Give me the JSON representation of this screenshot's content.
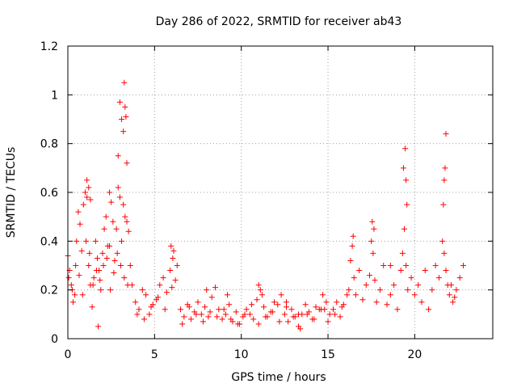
{
  "chart_data": {
    "type": "scatter",
    "title": "Day 286 of 2022, SRMTID for receiver ab43",
    "xlabel": "GPS time / hours",
    "ylabel": "SRMTID / TECUs",
    "xlim": [
      0,
      24.5
    ],
    "ylim": [
      0,
      1.2
    ],
    "x_ticks": [
      0,
      5,
      10,
      15,
      20
    ],
    "x_tick_labels": [
      "0",
      "5",
      "10",
      "15",
      "20"
    ],
    "y_ticks": [
      0,
      0.2,
      0.4,
      0.6,
      0.8,
      1.0,
      1.2
    ],
    "y_tick_labels": [
      "0",
      "0.2",
      "0.4",
      "0.6",
      "0.8",
      "1",
      "1.2"
    ],
    "grid": true,
    "marker": "+",
    "series": [
      {
        "name": "SRMTID",
        "color": "#ff0000",
        "x": [
          0.0,
          0.1,
          0.2,
          0.3,
          0.4,
          0.5,
          0.6,
          0.7,
          0.8,
          0.9,
          1.0,
          1.1,
          1.2,
          1.3,
          1.4,
          1.5,
          1.6,
          1.7,
          1.8,
          1.9,
          2.0,
          2.1,
          2.2,
          2.3,
          2.4,
          2.5,
          2.6,
          2.7,
          2.8,
          2.9,
          3.0,
          3.1,
          3.2,
          3.3,
          3.4,
          3.5,
          3.6,
          0.05,
          0.25,
          0.45,
          0.65,
          0.85,
          1.05,
          1.25,
          1.45,
          1.65,
          1.85,
          2.05,
          2.25,
          2.45,
          2.65,
          2.85,
          3.05,
          3.25,
          3.45,
          1.1,
          1.2,
          1.3,
          2.9,
          3.0,
          3.1,
          3.2,
          3.25,
          3.3,
          3.35,
          3.4,
          1.75,
          2.4,
          3.7,
          3.9,
          4.1,
          4.3,
          4.5,
          4.7,
          4.9,
          5.1,
          5.3,
          5.5,
          5.7,
          5.9,
          6.1,
          6.3,
          4.0,
          4.4,
          4.8,
          5.2,
          5.6,
          6.0,
          6.2,
          5.95,
          6.05,
          6.5,
          6.7,
          6.9,
          7.1,
          7.3,
          7.5,
          7.7,
          7.9,
          8.1,
          8.3,
          8.5,
          8.7,
          8.9,
          9.1,
          9.3,
          9.5,
          9.7,
          9.9,
          10.1,
          10.3,
          10.5,
          10.7,
          10.9,
          11.1,
          11.3,
          11.5,
          11.7,
          11.9,
          12.1,
          12.3,
          12.5,
          12.7,
          12.9,
          13.1,
          13.3,
          13.5,
          13.7,
          13.9,
          14.1,
          14.3,
          14.5,
          14.7,
          14.9,
          15.1,
          15.3,
          15.5,
          15.7,
          15.9,
          16.1,
          6.6,
          7.0,
          7.4,
          7.8,
          8.2,
          8.6,
          9.0,
          9.4,
          9.8,
          10.2,
          10.6,
          11.0,
          11.4,
          11.8,
          12.2,
          12.6,
          13.0,
          13.4,
          13.8,
          14.2,
          14.6,
          15.0,
          15.4,
          15.8,
          8.0,
          9.2,
          11.0,
          11.2,
          12.6,
          13.3,
          14.8,
          16.2,
          16.3,
          16.4,
          16.5,
          16.6,
          16.8,
          17.0,
          17.2,
          17.4,
          17.5,
          17.6,
          17.7,
          17.8,
          18.0,
          18.2,
          18.4,
          18.6,
          18.8,
          19.0,
          19.2,
          19.3,
          19.4,
          19.5,
          19.6,
          19.8,
          20.0,
          20.2,
          20.4,
          20.6,
          20.8,
          21.0,
          21.2,
          21.4,
          21.6,
          21.7,
          21.8,
          21.9,
          22.0,
          22.2,
          22.4,
          22.6,
          22.8,
          19.35,
          19.45,
          19.5,
          19.55,
          21.65,
          21.7,
          21.75,
          21.8,
          17.55,
          17.65,
          18.6,
          22.1,
          22.3,
          16.45
        ],
        "y": [
          0.34,
          0.28,
          0.22,
          0.15,
          0.18,
          0.4,
          0.52,
          0.47,
          0.36,
          0.55,
          0.6,
          0.58,
          0.3,
          0.22,
          0.13,
          0.25,
          0.4,
          0.33,
          0.28,
          0.2,
          0.35,
          0.45,
          0.5,
          0.38,
          0.6,
          0.56,
          0.48,
          0.32,
          0.45,
          0.62,
          0.58,
          0.4,
          0.55,
          0.5,
          0.48,
          0.44,
          0.3,
          0.25,
          0.2,
          0.3,
          0.26,
          0.18,
          0.4,
          0.35,
          0.22,
          0.28,
          0.24,
          0.3,
          0.33,
          0.2,
          0.27,
          0.35,
          0.3,
          0.25,
          0.22,
          0.65,
          0.62,
          0.57,
          0.75,
          0.97,
          0.9,
          0.85,
          1.05,
          0.95,
          0.91,
          0.72,
          0.05,
          0.38,
          0.22,
          0.15,
          0.12,
          0.2,
          0.18,
          0.1,
          0.14,
          0.16,
          0.22,
          0.25,
          0.19,
          0.28,
          0.36,
          0.3,
          0.1,
          0.08,
          0.13,
          0.17,
          0.12,
          0.21,
          0.24,
          0.38,
          0.33,
          0.12,
          0.09,
          0.14,
          0.08,
          0.11,
          0.15,
          0.1,
          0.13,
          0.09,
          0.17,
          0.21,
          0.12,
          0.08,
          0.1,
          0.14,
          0.07,
          0.11,
          0.06,
          0.09,
          0.12,
          0.1,
          0.08,
          0.16,
          0.2,
          0.13,
          0.09,
          0.11,
          0.15,
          0.14,
          0.18,
          0.1,
          0.07,
          0.12,
          0.09,
          0.05,
          0.1,
          0.14,
          0.11,
          0.08,
          0.13,
          0.12,
          0.18,
          0.15,
          0.1,
          0.12,
          0.15,
          0.09,
          0.14,
          0.18,
          0.06,
          0.13,
          0.1,
          0.07,
          0.11,
          0.09,
          0.12,
          0.08,
          0.06,
          0.1,
          0.14,
          0.06,
          0.09,
          0.11,
          0.07,
          0.13,
          0.09,
          0.04,
          0.1,
          0.08,
          0.12,
          0.07,
          0.1,
          0.13,
          0.2,
          0.18,
          0.22,
          0.18,
          0.15,
          0.1,
          0.12,
          0.2,
          0.32,
          0.38,
          0.25,
          0.18,
          0.28,
          0.16,
          0.22,
          0.26,
          0.4,
          0.35,
          0.24,
          0.15,
          0.2,
          0.3,
          0.14,
          0.18,
          0.22,
          0.12,
          0.28,
          0.35,
          0.45,
          0.3,
          0.2,
          0.25,
          0.18,
          0.22,
          0.15,
          0.28,
          0.12,
          0.2,
          0.3,
          0.25,
          0.4,
          0.35,
          0.28,
          0.22,
          0.18,
          0.15,
          0.2,
          0.25,
          0.3,
          0.7,
          0.78,
          0.65,
          0.55,
          0.55,
          0.65,
          0.7,
          0.84,
          0.48,
          0.45,
          0.3,
          0.22,
          0.17,
          0.42
        ]
      }
    ]
  }
}
